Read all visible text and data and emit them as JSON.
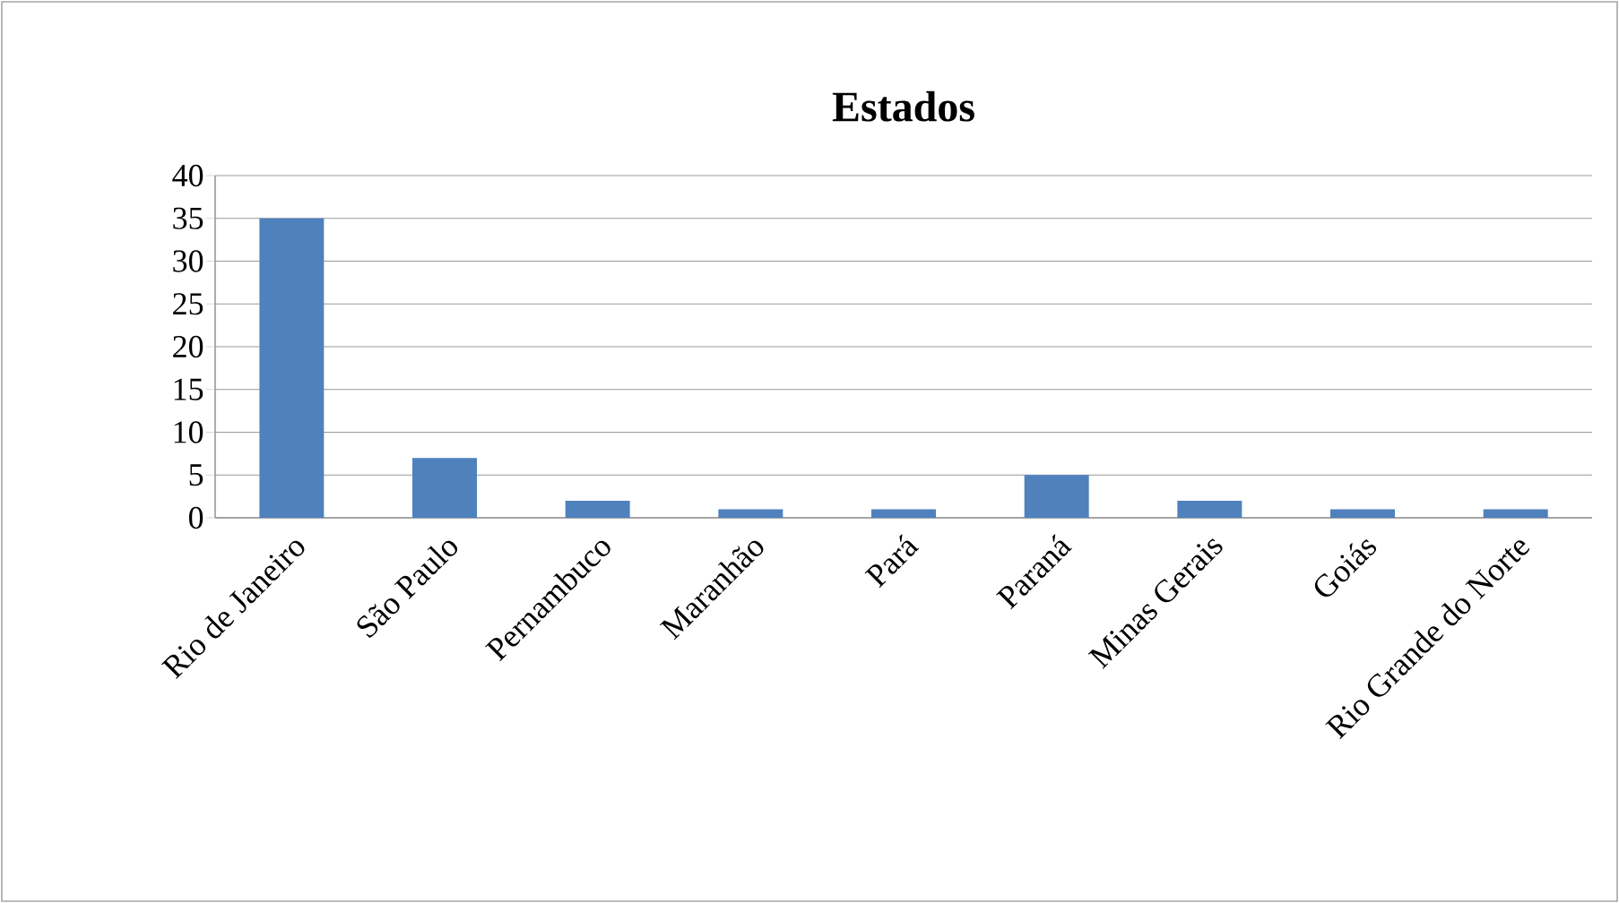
{
  "chart_data": {
    "type": "bar",
    "title": "Estados",
    "categories": [
      "Rio de Janeiro",
      "São Paulo",
      "Pernambuco",
      "Maranhão",
      "Pará",
      "Paraná",
      "Minas Gerais",
      "Goiás",
      "Rio Grande do Norte"
    ],
    "values": [
      35,
      7,
      2,
      1,
      1,
      5,
      2,
      1,
      1
    ],
    "color": "#4f81bd",
    "ylim": [
      0,
      40
    ],
    "yticks": [
      0,
      5,
      10,
      15,
      20,
      25,
      30,
      35,
      40
    ],
    "grid": "y"
  }
}
